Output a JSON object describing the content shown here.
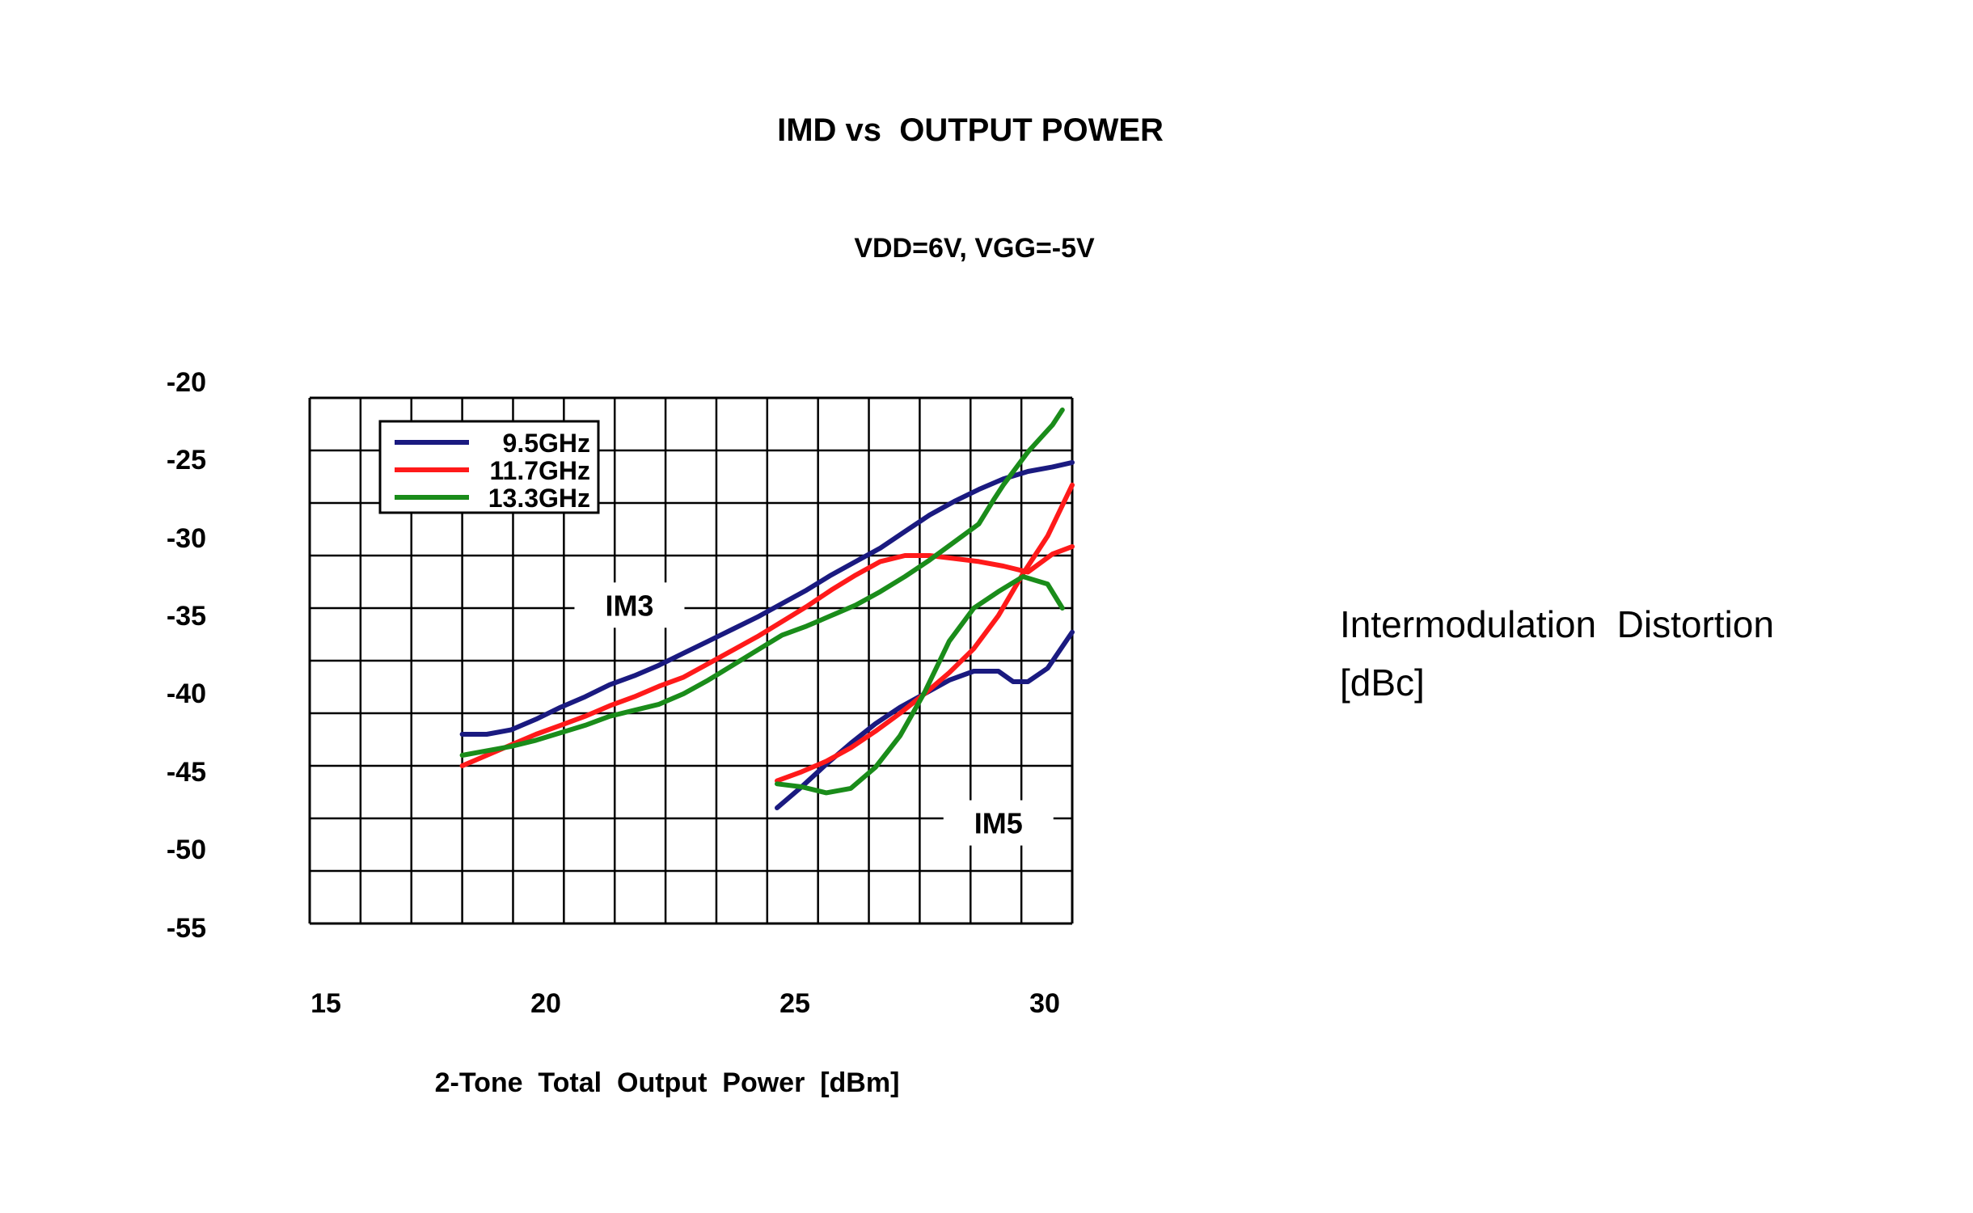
{
  "chart_data": {
    "type": "line",
    "title": "IMD vs  OUTPUT POWER",
    "subtitle": "VDD=6V, VGG=-5V",
    "xlabel": "2-Tone  Total  Output  Power  [dBm]",
    "ylabel_lines": [
      "Intermodulation  Distortion",
      "[dBc]"
    ],
    "xlim": [
      15,
      30.5
    ],
    "ylim": [
      -55,
      -20
    ],
    "x_ticks": [
      "15",
      "20",
      "25",
      "30"
    ],
    "y_ticks": [
      "-20",
      "-25",
      "-30",
      "-35",
      "-40",
      "-45",
      "-50",
      "-55"
    ],
    "grid": true,
    "legend_position": "top-left",
    "annotations": [
      {
        "text": "IM3",
        "x": 21.5,
        "y": -33.8
      },
      {
        "text": "IM5",
        "x": 29.0,
        "y": -48.3
      }
    ],
    "series": [
      {
        "name": "9.5GHz",
        "color": "#1a1a80",
        "group": "IM3",
        "x": [
          18.1,
          18.6,
          19.1,
          19.6,
          20.1,
          20.6,
          21.1,
          21.6,
          22.1,
          22.6,
          23.1,
          23.6,
          24.1,
          24.6,
          25.1,
          25.6,
          26.1,
          26.6,
          27.1,
          27.6,
          28.1,
          28.6,
          29.1,
          29.6,
          30.1,
          30.5
        ],
        "y": [
          -42.4,
          -42.4,
          -42.1,
          -41.4,
          -40.6,
          -39.9,
          -39.1,
          -38.5,
          -37.8,
          -37.0,
          -36.2,
          -35.4,
          -34.6,
          -33.7,
          -32.8,
          -31.8,
          -30.9,
          -30.0,
          -28.9,
          -27.8,
          -26.9,
          -26.1,
          -25.4,
          -24.9,
          -24.6,
          -24.3
        ]
      },
      {
        "name": "11.7GHz",
        "color": "#ff1a1a",
        "group": "IM3",
        "x": [
          18.1,
          18.6,
          19.1,
          19.6,
          20.1,
          20.6,
          21.1,
          21.6,
          22.1,
          22.6,
          23.1,
          23.6,
          24.1,
          24.6,
          25.1,
          25.6,
          26.1,
          26.6,
          27.1,
          27.6,
          28.1,
          28.6,
          29.1,
          29.6,
          30.1,
          30.5
        ],
        "y": [
          -44.5,
          -43.8,
          -43.1,
          -42.4,
          -41.8,
          -41.2,
          -40.5,
          -39.9,
          -39.2,
          -38.6,
          -37.7,
          -36.8,
          -35.9,
          -34.9,
          -33.9,
          -32.8,
          -31.8,
          -30.9,
          -30.5,
          -30.5,
          -30.7,
          -30.9,
          -31.2,
          -31.6,
          -30.4,
          -29.9
        ]
      },
      {
        "name": "13.3GHz",
        "color": "#1a8c1a",
        "group": "IM3",
        "x": [
          18.1,
          18.6,
          19.1,
          19.6,
          20.1,
          20.6,
          21.1,
          21.6,
          22.1,
          22.6,
          23.1,
          23.6,
          24.1,
          24.6,
          25.1,
          25.6,
          26.1,
          26.6,
          27.1,
          27.6,
          28.1,
          28.6,
          28.9,
          29.1,
          29.6,
          30.1,
          30.3
        ],
        "y": [
          -43.8,
          -43.5,
          -43.2,
          -42.8,
          -42.3,
          -41.8,
          -41.2,
          -40.8,
          -40.4,
          -39.7,
          -38.8,
          -37.8,
          -36.8,
          -35.8,
          -35.2,
          -34.5,
          -33.8,
          -32.9,
          -31.9,
          -30.8,
          -29.6,
          -28.4,
          -26.8,
          -25.8,
          -23.6,
          -21.8,
          -20.8
        ]
      },
      {
        "name": "9.5GHz",
        "color": "#1a1a80",
        "group": "IM5",
        "x": [
          24.5,
          25.0,
          25.5,
          26.0,
          26.5,
          27.0,
          27.5,
          28.0,
          28.5,
          29.0,
          29.3,
          29.6,
          30.0,
          30.5
        ],
        "y": [
          -47.3,
          -45.9,
          -44.4,
          -43.0,
          -41.7,
          -40.6,
          -39.7,
          -38.8,
          -38.2,
          -38.2,
          -38.9,
          -38.9,
          -38.0,
          -35.6
        ]
      },
      {
        "name": "11.7GHz",
        "color": "#ff1a1a",
        "group": "IM5",
        "x": [
          24.5,
          25.0,
          25.5,
          26.0,
          26.5,
          27.0,
          27.5,
          28.0,
          28.5,
          29.0,
          29.5,
          30.0,
          30.5
        ],
        "y": [
          -45.5,
          -44.9,
          -44.2,
          -43.3,
          -42.2,
          -41.0,
          -39.7,
          -38.3,
          -36.7,
          -34.5,
          -31.7,
          -29.2,
          -25.8
        ]
      },
      {
        "name": "13.3GHz",
        "color": "#1a8c1a",
        "group": "IM5",
        "x": [
          24.5,
          25.0,
          25.5,
          26.0,
          26.5,
          27.0,
          27.5,
          28.0,
          28.5,
          29.0,
          29.5,
          30.0,
          30.3
        ],
        "y": [
          -45.7,
          -45.9,
          -46.3,
          -46.0,
          -44.6,
          -42.5,
          -39.6,
          -36.2,
          -34.0,
          -32.9,
          -31.9,
          -32.4,
          -34.0
        ]
      }
    ]
  }
}
